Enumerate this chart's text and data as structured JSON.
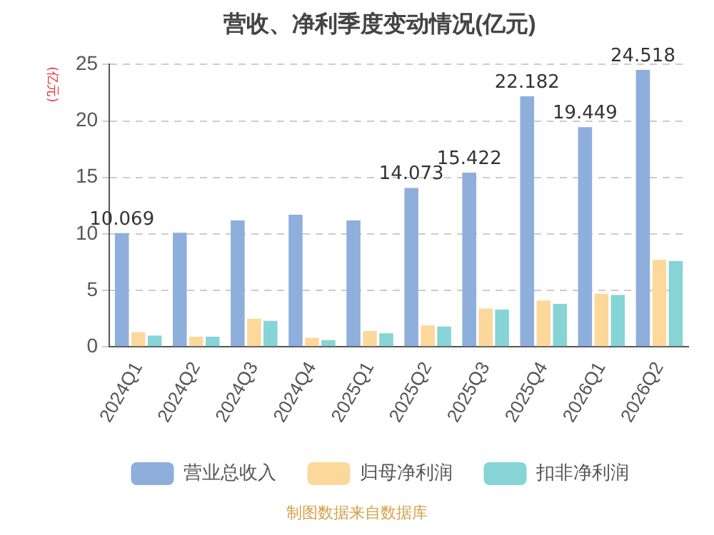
{
  "chart_data": {
    "type": "bar",
    "title": "营收、净利季度变动情况(亿元)",
    "ylabel": "(亿元)",
    "categories": [
      "2024Q1",
      "2024Q2",
      "2024Q3",
      "2024Q4",
      "2025Q1",
      "2025Q2",
      "2025Q3",
      "2025Q4",
      "2026Q1",
      "2026Q2"
    ],
    "series": [
      {
        "name": "营业总收入",
        "color": "#8eaedc",
        "values": [
          10.069,
          10.1,
          11.2,
          11.7,
          11.2,
          14.073,
          15.422,
          22.182,
          19.449,
          24.518
        ],
        "value_labels": [
          "10.069",
          null,
          null,
          null,
          null,
          "14.073",
          "15.422",
          "22.182",
          "19.449",
          "24.518"
        ]
      },
      {
        "name": "归母净利润",
        "color": "#fdd89b",
        "values": [
          1.3,
          0.9,
          2.5,
          0.8,
          1.4,
          1.9,
          3.4,
          4.1,
          4.7,
          7.7
        ]
      },
      {
        "name": "扣非净利润",
        "color": "#86d4d6",
        "values": [
          1.0,
          0.9,
          2.3,
          0.6,
          1.2,
          1.8,
          3.3,
          3.8,
          4.6,
          7.6
        ]
      }
    ],
    "ylim": [
      0,
      25
    ],
    "yticks": [
      0,
      5,
      10,
      15,
      20,
      25
    ],
    "grid": "y",
    "legend": "bottom",
    "annotations": [
      "制图数据来自数据库"
    ]
  }
}
